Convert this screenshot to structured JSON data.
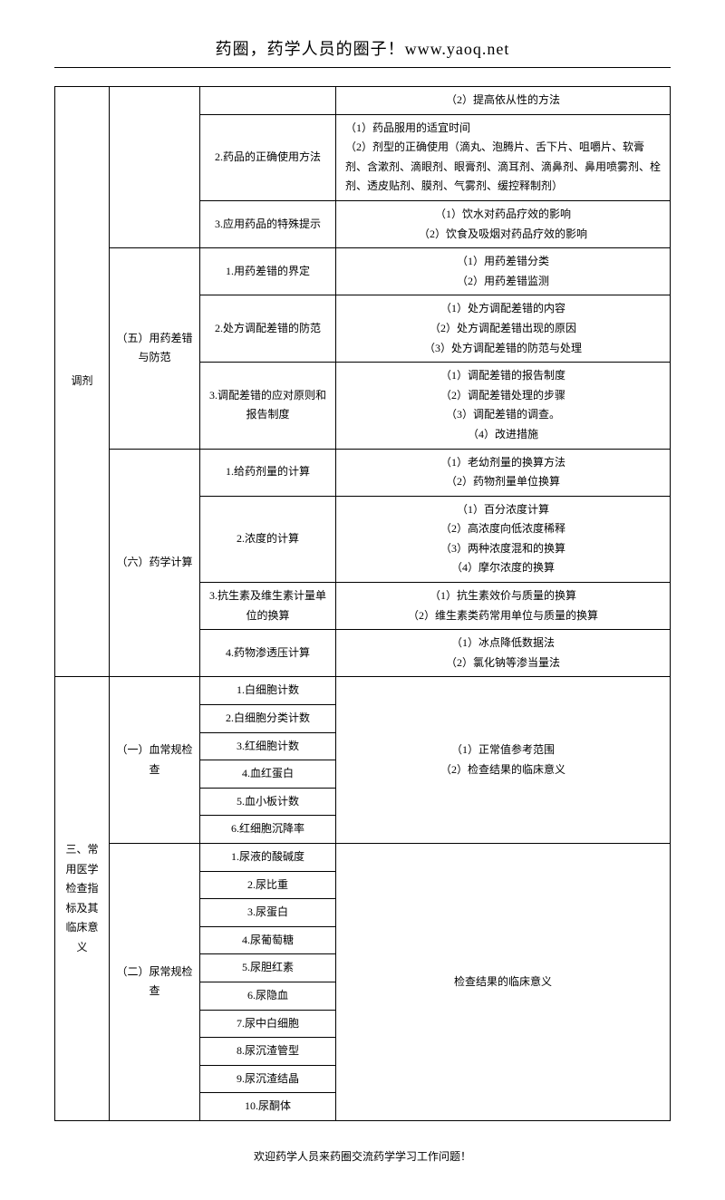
{
  "header": "药圈，药学人员的圈子！www.yaoq.net",
  "footer": "欢迎药学人员来药圈交流药学学习工作问题！",
  "sec1": {
    "label": "调剂"
  },
  "s1a": {
    "r1c4": "（2）提高依从性的方法",
    "r2c3": "2.药品的正确使用方法",
    "r2c4": "（1）药品服用的适宜时间\n（2）剂型的正确使用（滴丸、泡腾片、舌下片、咀嚼片、软膏剂、含漱剂、滴眼剂、眼膏剂、滴耳剂、滴鼻剂、鼻用喷雾剂、栓剂、透皮贴剂、膜剂、气雾剂、缓控释制剂）",
    "r3c3": "3.应用药品的特殊提示",
    "r3c4": "（1）饮水对药品疗效的影响\n（2）饮食及吸烟对药品疗效的影响"
  },
  "s1b": {
    "label": "（五）用药差错与防范",
    "r1c3": "1.用药差错的界定",
    "r1c4": "（1）用药差错分类\n（2）用药差错监测",
    "r2c3": "2.处方调配差错的防范",
    "r2c4": "（1）处方调配差错的内容\n（2）处方调配差错出现的原因\n（3）处方调配差错的防范与处理",
    "r3c3": "3.调配差错的应对原则和报告制度",
    "r3c4": "（1）调配差错的报告制度\n（2）调配差错处理的步骤\n（3）调配差错的调查。\n（4）改进措施"
  },
  "s1c": {
    "label": "（六）药学计算",
    "r1c3": "1.给药剂量的计算",
    "r1c4": "（1）老幼剂量的换算方法\n（2）药物剂量单位换算",
    "r2c3": "2.浓度的计算",
    "r2c4": "（1）百分浓度计算\n（2）高浓度向低浓度稀释\n（3）两种浓度混和的换算\n（4）摩尔浓度的换算",
    "r3c3": "3.抗生素及维生素计量单位的换算",
    "r3c4": "（1）抗生素效价与质量的换算\n（2）维生素类药常用单位与质量的换算",
    "r4c3": "4.药物渗透压计算",
    "r4c4": "（1）冰点降低数据法\n（2）氯化钠等渗当量法"
  },
  "sec2": {
    "label": "三、常用医学检查指标及其临床意义",
    "a_label": "（一）血常规检查",
    "a_items": [
      "1.白细胞计数",
      "2.白细胞分类计数",
      "3.红细胞计数",
      "4.血红蛋白",
      "5.血小板计数",
      "6.红细胞沉降率"
    ],
    "a_right": "（1）正常值参考范围\n（2）检查结果的临床意义",
    "b_label": "（二）尿常规检查",
    "b_items": [
      "1.尿液的酸碱度",
      "2.尿比重",
      "3.尿蛋白",
      "4.尿葡萄糖",
      "5.尿胆红素",
      "6.尿隐血",
      "7.尿中白细胞",
      "8.尿沉渣管型",
      "9.尿沉渣结晶",
      "10.尿酮体"
    ],
    "b_right": "检查结果的临床意义"
  }
}
